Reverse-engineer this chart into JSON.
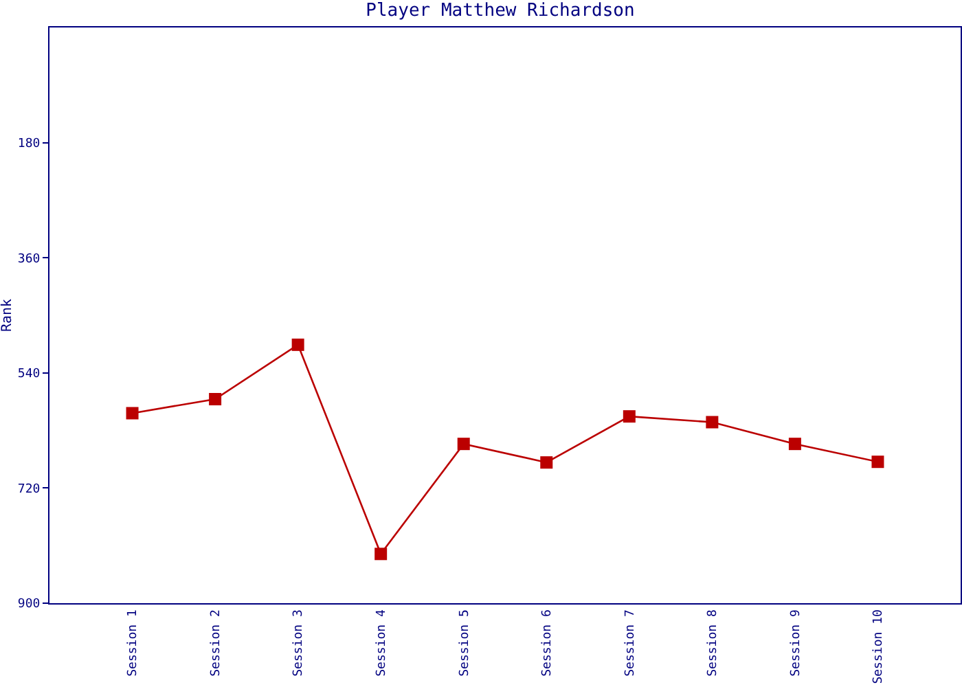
{
  "chart_data": {
    "type": "line",
    "title": "Player Matthew Richardson",
    "ylabel": "Rank",
    "categories": [
      "Session 1",
      "Session 2",
      "Session 3",
      "Session 4",
      "Session 5",
      "Session 6",
      "Session 7",
      "Session 8",
      "Session 9",
      "Session 10"
    ],
    "series": [
      {
        "color": "#bb0000",
        "values": [
          603,
          581,
          496,
          823,
          651,
          680,
          608,
          617,
          651,
          679
        ]
      }
    ],
    "ylim": [
      900,
      0
    ],
    "yticks": [
      180,
      360,
      540,
      720,
      900
    ],
    "grid": false,
    "legend": false,
    "marker": "square",
    "line_style": "solid"
  }
}
